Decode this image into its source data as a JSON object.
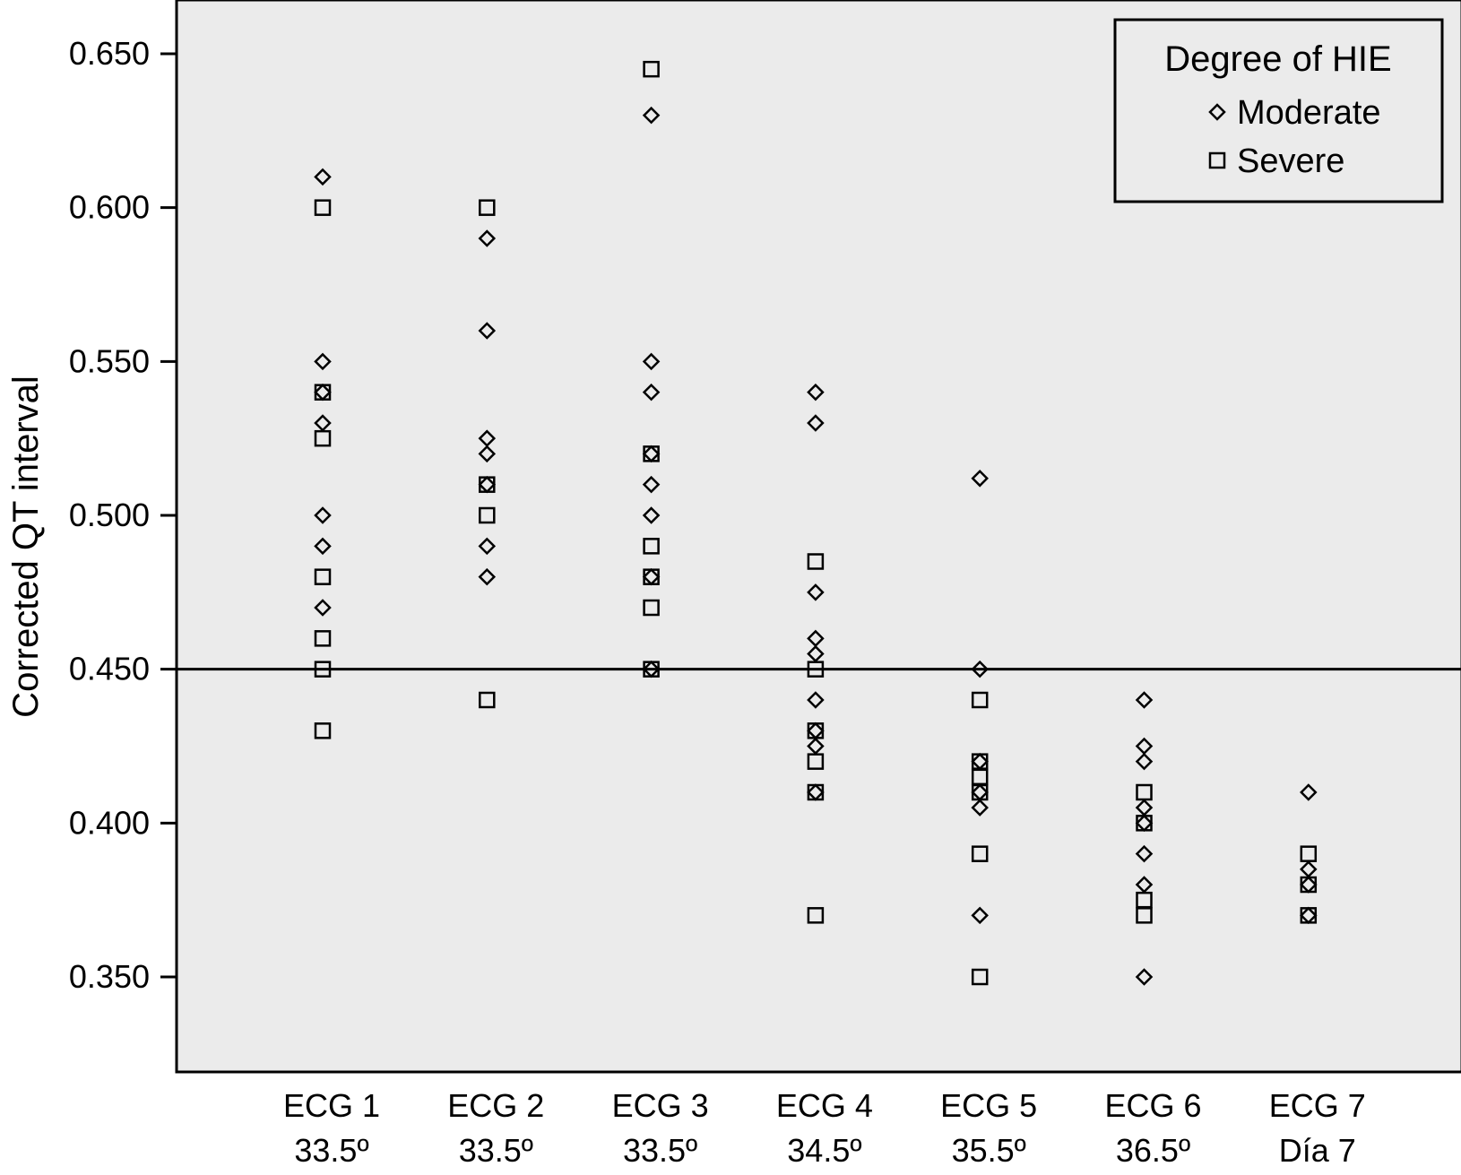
{
  "chart_data": {
    "type": "scatter",
    "title": "",
    "xlabel": "",
    "ylabel": "Corrected QT interval",
    "ylim": [
      0.325,
      0.668
    ],
    "yticks": [
      "0.350",
      "0.400",
      "0.450",
      "0.500",
      "0.550",
      "0.600",
      "0.650"
    ],
    "grid": false,
    "plot_background": "#ebebeb",
    "categories": [
      {
        "line1": "ECG 1",
        "line2": "33.5º"
      },
      {
        "line1": "ECG 2",
        "line2": "33.5º"
      },
      {
        "line1": "ECG 3",
        "line2": "33.5º"
      },
      {
        "line1": "ECG 4",
        "line2": "34.5º"
      },
      {
        "line1": "ECG 5",
        "line2": "35.5º"
      },
      {
        "line1": "ECG 6",
        "line2": "36.5º"
      },
      {
        "line1": "ECG 7",
        "line2": "Día 7"
      }
    ],
    "reference_line": {
      "y": 0.45
    },
    "legend": {
      "title": "Degree of HIE",
      "position": "top-right"
    },
    "series": [
      {
        "name": "Moderate",
        "marker": "diamond",
        "points": [
          [
            0,
            0.61
          ],
          [
            0,
            0.55
          ],
          [
            0,
            0.54
          ],
          [
            0,
            0.53
          ],
          [
            0,
            0.5
          ],
          [
            0,
            0.49
          ],
          [
            0,
            0.47
          ],
          [
            1,
            0.59
          ],
          [
            1,
            0.56
          ],
          [
            1,
            0.525
          ],
          [
            1,
            0.52
          ],
          [
            1,
            0.51
          ],
          [
            1,
            0.49
          ],
          [
            1,
            0.48
          ],
          [
            2,
            0.63
          ],
          [
            2,
            0.55
          ],
          [
            2,
            0.54
          ],
          [
            2,
            0.52
          ],
          [
            2,
            0.51
          ],
          [
            2,
            0.5
          ],
          [
            2,
            0.48
          ],
          [
            2,
            0.45
          ],
          [
            3,
            0.54
          ],
          [
            3,
            0.53
          ],
          [
            3,
            0.475
          ],
          [
            3,
            0.46
          ],
          [
            3,
            0.455
          ],
          [
            3,
            0.44
          ],
          [
            3,
            0.43
          ],
          [
            3,
            0.425
          ],
          [
            3,
            0.41
          ],
          [
            4,
            0.512
          ],
          [
            4,
            0.45
          ],
          [
            4,
            0.42
          ],
          [
            4,
            0.41
          ],
          [
            4,
            0.405
          ],
          [
            4,
            0.37
          ],
          [
            5,
            0.44
          ],
          [
            5,
            0.425
          ],
          [
            5,
            0.42
          ],
          [
            5,
            0.405
          ],
          [
            5,
            0.4
          ],
          [
            5,
            0.39
          ],
          [
            5,
            0.38
          ],
          [
            5,
            0.35
          ],
          [
            6,
            0.41
          ],
          [
            6,
            0.385
          ],
          [
            6,
            0.38
          ],
          [
            6,
            0.37
          ]
        ]
      },
      {
        "name": "Severe",
        "marker": "square",
        "points": [
          [
            0,
            0.6
          ],
          [
            0,
            0.54
          ],
          [
            0,
            0.525
          ],
          [
            0,
            0.48
          ],
          [
            0,
            0.46
          ],
          [
            0,
            0.45
          ],
          [
            0,
            0.43
          ],
          [
            1,
            0.6
          ],
          [
            1,
            0.51
          ],
          [
            1,
            0.5
          ],
          [
            1,
            0.44
          ],
          [
            2,
            0.645
          ],
          [
            2,
            0.52
          ],
          [
            2,
            0.49
          ],
          [
            2,
            0.48
          ],
          [
            2,
            0.47
          ],
          [
            2,
            0.45
          ],
          [
            3,
            0.485
          ],
          [
            3,
            0.45
          ],
          [
            3,
            0.43
          ],
          [
            3,
            0.42
          ],
          [
            3,
            0.41
          ],
          [
            3,
            0.37
          ],
          [
            4,
            0.44
          ],
          [
            4,
            0.42
          ],
          [
            4,
            0.415
          ],
          [
            4,
            0.41
          ],
          [
            4,
            0.39
          ],
          [
            4,
            0.35
          ],
          [
            5,
            0.41
          ],
          [
            5,
            0.4
          ],
          [
            5,
            0.375
          ],
          [
            5,
            0.37
          ],
          [
            6,
            0.39
          ],
          [
            6,
            0.38
          ],
          [
            6,
            0.37
          ]
        ]
      }
    ]
  }
}
